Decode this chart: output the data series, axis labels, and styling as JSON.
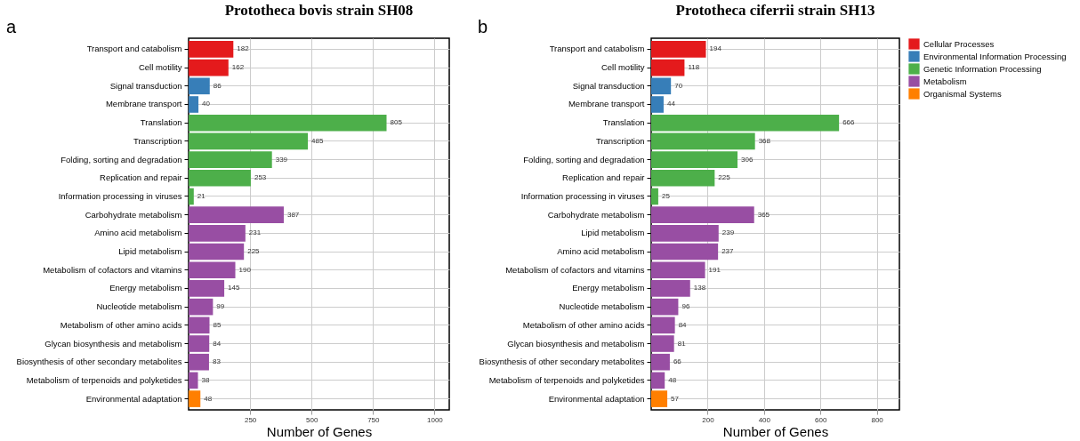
{
  "chart_data": [
    {
      "type": "bar",
      "orientation": "horizontal",
      "title": "Prototheca bovis strain SH08",
      "xlabel": "Number of Genes",
      "annotations": [
        "a"
      ],
      "categories": [
        "Transport and catabolism",
        "Cell motility",
        "Signal transduction",
        "Membrane transport",
        "Translation",
        "Transcription",
        "Folding, sorting and degradation",
        "Replication and repair",
        "Information processing in viruses",
        "Carbohydrate metabolism",
        "Amino acid metabolism",
        "Lipid metabolism",
        "Metabolism of cofactors and vitamins",
        "Energy metabolism",
        "Nucleotide metabolism",
        "Metabolism of other amino acids",
        "Glycan biosynthesis and metabolism",
        "Biosynthesis of other secondary metabolites",
        "Metabolism of terpenoids and polyketides",
        "Environmental adaptation"
      ],
      "series": [
        {
          "color": "#e41a1c",
          "values": [
            182,
            162,
            null,
            null,
            null,
            null,
            null,
            null,
            null,
            null,
            null,
            null,
            null,
            null,
            null,
            null,
            null,
            null,
            null,
            null
          ]
        },
        {
          "color": "#377eb8",
          "values": [
            null,
            null,
            86,
            40,
            null,
            null,
            null,
            null,
            null,
            null,
            null,
            null,
            null,
            null,
            null,
            null,
            null,
            null,
            null,
            null
          ]
        },
        {
          "color": "#4daf4a",
          "values": [
            null,
            null,
            null,
            null,
            805,
            485,
            339,
            253,
            21,
            null,
            null,
            null,
            null,
            null,
            null,
            null,
            null,
            null,
            null,
            null
          ]
        },
        {
          "color": "#984ea3",
          "values": [
            null,
            null,
            null,
            null,
            null,
            null,
            null,
            null,
            null,
            387,
            231,
            225,
            190,
            145,
            99,
            85,
            84,
            83,
            38,
            null
          ]
        },
        {
          "color": "#ff7f00",
          "values": [
            null,
            null,
            null,
            null,
            null,
            null,
            null,
            null,
            null,
            null,
            null,
            null,
            null,
            null,
            null,
            null,
            null,
            null,
            null,
            48
          ]
        }
      ],
      "xlim": [
        0,
        1060
      ],
      "xticks": [
        250,
        500,
        750,
        1000
      ],
      "grid": true,
      "data_labels": true
    },
    {
      "type": "bar",
      "orientation": "horizontal",
      "title": "Prototheca ciferrii strain SH13",
      "xlabel": "Number of Genes",
      "annotations": [
        "b"
      ],
      "categories": [
        "Transport and catabolism",
        "Cell motility",
        "Signal transduction",
        "Membrane transport",
        "Translation",
        "Transcription",
        "Folding, sorting and degradation",
        "Replication and repair",
        "Information processing in viruses",
        "Carbohydrate metabolism",
        "Lipid metabolism",
        "Amino acid metabolism",
        "Metabolism of cofactors and vitamins",
        "Energy metabolism",
        "Nucleotide metabolism",
        "Metabolism of other amino acids",
        "Glycan biosynthesis and metabolism",
        "Biosynthesis of other secondary metabolites",
        "Metabolism of terpenoids and polyketides",
        "Environmental adaptation"
      ],
      "series": [
        {
          "name": "Cellular Processes",
          "color": "#e41a1c",
          "values": [
            194,
            118,
            null,
            null,
            null,
            null,
            null,
            null,
            null,
            null,
            null,
            null,
            null,
            null,
            null,
            null,
            null,
            null,
            null,
            null
          ]
        },
        {
          "name": "Environmental Information Processing",
          "color": "#377eb8",
          "values": [
            null,
            null,
            70,
            44,
            null,
            null,
            null,
            null,
            null,
            null,
            null,
            null,
            null,
            null,
            null,
            null,
            null,
            null,
            null,
            null
          ]
        },
        {
          "name": "Genetic Information Processing",
          "color": "#4daf4a",
          "values": [
            null,
            null,
            null,
            null,
            666,
            368,
            306,
            225,
            25,
            null,
            null,
            null,
            null,
            null,
            null,
            null,
            null,
            null,
            null,
            null
          ]
        },
        {
          "name": "Metabolism",
          "color": "#984ea3",
          "values": [
            null,
            null,
            null,
            null,
            null,
            null,
            null,
            null,
            null,
            365,
            239,
            237,
            191,
            138,
            96,
            84,
            81,
            66,
            48,
            null
          ]
        },
        {
          "name": "Organismal Systems",
          "color": "#ff7f00",
          "values": [
            null,
            null,
            null,
            null,
            null,
            null,
            null,
            null,
            null,
            null,
            null,
            null,
            null,
            null,
            null,
            null,
            null,
            null,
            null,
            57
          ]
        }
      ],
      "xlim": [
        0,
        880
      ],
      "xticks": [
        200,
        400,
        600,
        800
      ],
      "grid": true,
      "data_labels": true,
      "legend": "right"
    }
  ]
}
